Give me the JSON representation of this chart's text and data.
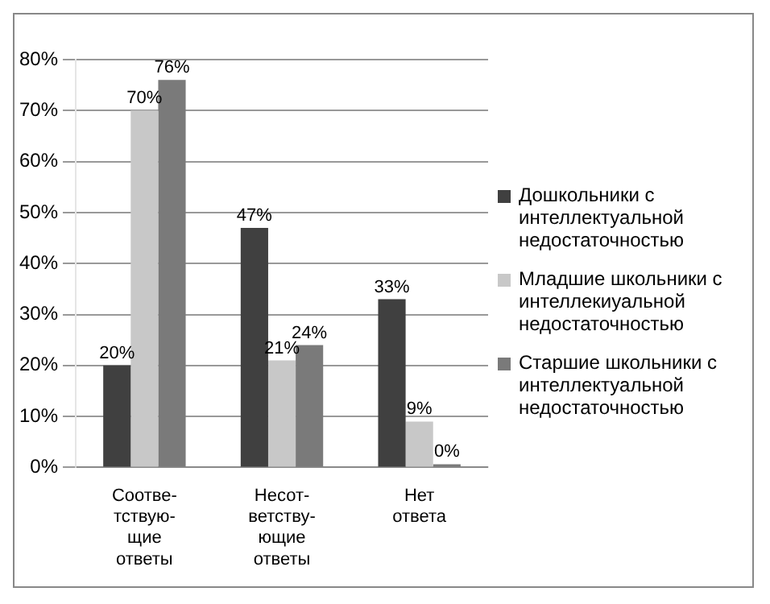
{
  "chart_data": {
    "type": "bar",
    "categories": [
      "Соотве-\nтствую-\nщие\nответы",
      "Несот-\nветству-\nющие\nответы",
      "Нет\nответа"
    ],
    "series": [
      {
        "name": "Дошкольники с интеллектуальной недостаточностью",
        "color": "#404040",
        "values": [
          20,
          47,
          33
        ],
        "value_labels": [
          "20%",
          "47%",
          "33%"
        ]
      },
      {
        "name": "Младшие школьники с интеллекиуальной недостаточностью",
        "color": "#c8c8c8",
        "values": [
          70,
          21,
          9
        ],
        "value_labels": [
          "70%",
          "21%",
          "9%"
        ]
      },
      {
        "name": "Старшие школьники с интеллектуальной недостаточностью",
        "color": "#7a7a7a",
        "values": [
          76,
          24,
          0
        ],
        "value_labels": [
          "76%",
          "24%",
          "0%"
        ]
      }
    ],
    "ylim": [
      0,
      80
    ],
    "yticks": [
      {
        "value": 0,
        "label": "0%"
      },
      {
        "value": 10,
        "label": "10%"
      },
      {
        "value": 20,
        "label": "20%"
      },
      {
        "value": 30,
        "label": "30%"
      },
      {
        "value": 40,
        "label": "40%"
      },
      {
        "value": 50,
        "label": "50%"
      },
      {
        "value": 60,
        "label": "60%"
      },
      {
        "value": 70,
        "label": "70%"
      },
      {
        "value": 80,
        "label": "80%"
      }
    ],
    "grid": "y",
    "legend": "right"
  }
}
